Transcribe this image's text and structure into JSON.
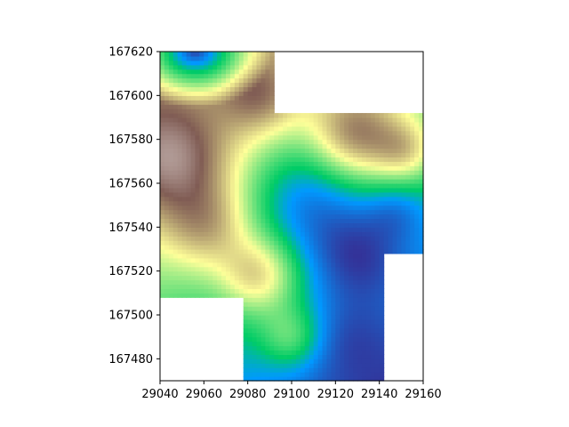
{
  "chart_data": {
    "type": "heatmap",
    "title": "",
    "xlabel": "",
    "ylabel": "",
    "colormap": "terrain",
    "xlim": [
      29040,
      29160
    ],
    "ylim": [
      167470,
      167620
    ],
    "x_ticks": [
      29040,
      29060,
      29080,
      29100,
      29120,
      29140,
      29160
    ],
    "y_ticks": [
      167480,
      167500,
      167520,
      167540,
      167560,
      167580,
      167600,
      167620
    ],
    "x_tick_labels": [
      "29040",
      "29060",
      "29080",
      "29100",
      "29120",
      "29140",
      "29160"
    ],
    "y_tick_labels": [
      "167480",
      "167500",
      "167520",
      "167540",
      "167560",
      "167580",
      "167600",
      "167620"
    ],
    "no_data_regions": [
      {
        "x": [
          29092,
          29160
        ],
        "y": [
          167592,
          167620
        ]
      },
      {
        "x": [
          29040,
          29078
        ],
        "y": [
          167470,
          167508
        ]
      },
      {
        "x": [
          29142,
          29160
        ],
        "y": [
          167470,
          167528
        ]
      }
    ],
    "surface_description": {
      "basin_low": {
        "x": 29056,
        "y": 167616,
        "level": 0.05
      },
      "ridge_peaks": [
        {
          "x": 29046,
          "y": 167570,
          "level": 0.84
        },
        {
          "x": 29085,
          "y": 167520,
          "level": 0.86
        },
        {
          "x": 29130,
          "y": 167580,
          "level": 0.9
        }
      ],
      "valley_floor": {
        "x": 29125,
        "y": 167528,
        "level": 0.3
      }
    }
  }
}
